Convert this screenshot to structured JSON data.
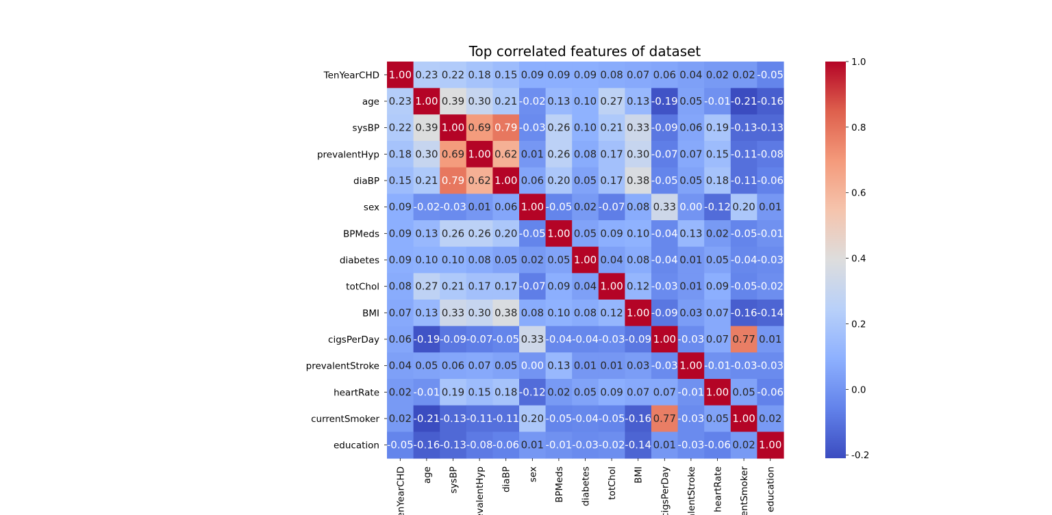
{
  "chart_data": {
    "type": "heatmap",
    "title": "Top correlated features of dataset",
    "labels": [
      "TenYearCHD",
      "age",
      "sysBP",
      "prevalentHyp",
      "diaBP",
      "sex",
      "BPMeds",
      "diabetes",
      "totChol",
      "BMI",
      "cigsPerDay",
      "prevalentStroke",
      "heartRate",
      "currentSmoker",
      "education"
    ],
    "values": [
      [
        1.0,
        0.23,
        0.22,
        0.18,
        0.15,
        0.09,
        0.09,
        0.09,
        0.08,
        0.07,
        0.06,
        0.04,
        0.02,
        0.02,
        -0.05
      ],
      [
        0.23,
        1.0,
        0.39,
        0.3,
        0.21,
        -0.02,
        0.13,
        0.1,
        0.27,
        0.13,
        -0.19,
        0.05,
        -0.01,
        -0.21,
        -0.16
      ],
      [
        0.22,
        0.39,
        1.0,
        0.69,
        0.79,
        -0.03,
        0.26,
        0.1,
        0.21,
        0.33,
        -0.09,
        0.06,
        0.19,
        -0.13,
        -0.13
      ],
      [
        0.18,
        0.3,
        0.69,
        1.0,
        0.62,
        0.01,
        0.26,
        0.08,
        0.17,
        0.3,
        -0.07,
        0.07,
        0.15,
        -0.11,
        -0.08
      ],
      [
        0.15,
        0.21,
        0.79,
        0.62,
        1.0,
        0.06,
        0.2,
        0.05,
        0.17,
        0.38,
        -0.05,
        0.05,
        0.18,
        -0.11,
        -0.06
      ],
      [
        0.09,
        -0.02,
        -0.03,
        0.01,
        0.06,
        1.0,
        -0.05,
        0.02,
        -0.07,
        0.08,
        0.33,
        -0.0,
        -0.12,
        0.2,
        0.01
      ],
      [
        0.09,
        0.13,
        0.26,
        0.26,
        0.2,
        -0.05,
        1.0,
        0.05,
        0.09,
        0.1,
        -0.04,
        0.13,
        0.02,
        -0.05,
        -0.01
      ],
      [
        0.09,
        0.1,
        0.1,
        0.08,
        0.05,
        0.02,
        0.05,
        1.0,
        0.04,
        0.08,
        -0.04,
        0.01,
        0.05,
        -0.04,
        -0.03
      ],
      [
        0.08,
        0.27,
        0.21,
        0.17,
        0.17,
        -0.07,
        0.09,
        0.04,
        1.0,
        0.12,
        -0.03,
        0.01,
        0.09,
        -0.05,
        -0.02
      ],
      [
        0.07,
        0.13,
        0.33,
        0.3,
        0.38,
        0.08,
        0.1,
        0.08,
        0.12,
        1.0,
        -0.09,
        0.03,
        0.07,
        -0.16,
        -0.14
      ],
      [
        0.06,
        -0.19,
        -0.09,
        -0.07,
        -0.05,
        0.33,
        -0.04,
        -0.04,
        -0.03,
        -0.09,
        1.0,
        -0.03,
        0.07,
        0.77,
        0.01
      ],
      [
        0.04,
        0.05,
        0.06,
        0.07,
        0.05,
        -0.0,
        0.13,
        0.01,
        0.01,
        0.03,
        -0.03,
        1.0,
        -0.01,
        -0.03,
        -0.03
      ],
      [
        0.02,
        -0.01,
        0.19,
        0.15,
        0.18,
        -0.12,
        0.02,
        0.05,
        0.09,
        0.07,
        0.07,
        -0.01,
        1.0,
        0.05,
        -0.06
      ],
      [
        0.02,
        -0.21,
        -0.13,
        -0.11,
        -0.11,
        0.2,
        -0.05,
        -0.04,
        -0.05,
        -0.16,
        0.77,
        -0.03,
        0.05,
        1.0,
        0.02
      ],
      [
        -0.05,
        -0.16,
        -0.13,
        -0.08,
        -0.06,
        0.01,
        -0.01,
        -0.03,
        -0.02,
        -0.14,
        0.01,
        -0.03,
        -0.06,
        0.02,
        1.0
      ]
    ],
    "colormap": "coolwarm",
    "vmin": -0.21,
    "vmax": 1.0,
    "colorbar_ticks": [
      -0.2,
      0.0,
      0.2,
      0.4,
      0.6,
      0.8,
      1.0
    ],
    "annotation_format": "0.00",
    "grid": false,
    "legend": "colorbar right"
  }
}
